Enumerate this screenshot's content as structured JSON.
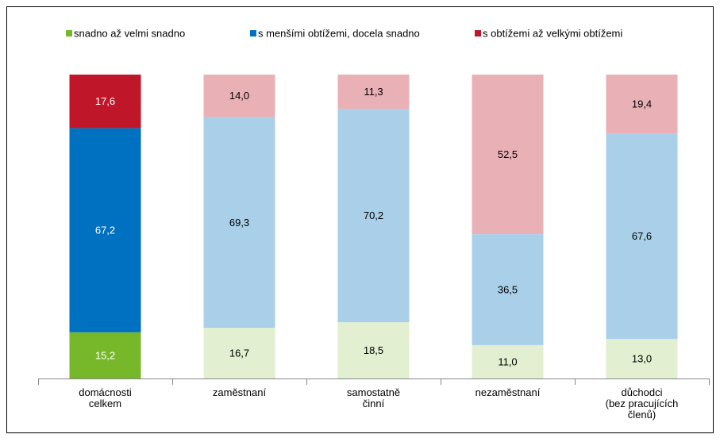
{
  "chart_data": {
    "type": "stacked_bar",
    "categories": [
      "domácnosti\ncelkem",
      "zaměstnaní",
      "samostatně\nčinní",
      "nezaměstnaní",
      "důchodci\n(bez pracujících\nčlenů)"
    ],
    "ylim": [
      0,
      100
    ],
    "series": [
      {
        "name": "snadno až velmi snadno",
        "color": "#77b82a",
        "colors": [
          "#77b82a",
          "#e2efd0",
          "#e2efd0",
          "#e2efd0",
          "#e2efd0"
        ],
        "values": [
          15.2,
          16.7,
          18.5,
          11.0,
          13.0
        ],
        "value_labels": [
          "15,2",
          "16,7",
          "18,5",
          "11,0",
          "13,0"
        ]
      },
      {
        "name": "s menšími obtížemi, docela snadno",
        "color": "#0070c0",
        "colors": [
          "#0070c0",
          "#a9cfe9",
          "#a9cfe9",
          "#a9cfe9",
          "#a9cfe9"
        ],
        "values": [
          67.2,
          69.3,
          70.2,
          36.5,
          67.6
        ],
        "value_labels": [
          "67,2",
          "69,3",
          "70,2",
          "36,5",
          "67,6"
        ]
      },
      {
        "name": "s obtížemi až velkými obtížemi",
        "color": "#c0162a",
        "colors": [
          "#c0162a",
          "#e9b0b5",
          "#e9b0b5",
          "#e9b0b5",
          "#e9b0b5"
        ],
        "values": [
          17.6,
          14.0,
          11.3,
          52.5,
          19.4
        ],
        "value_labels": [
          "17,6",
          "14,0",
          "11,3",
          "52,5",
          "19,4"
        ]
      }
    ],
    "legend": "top"
  }
}
